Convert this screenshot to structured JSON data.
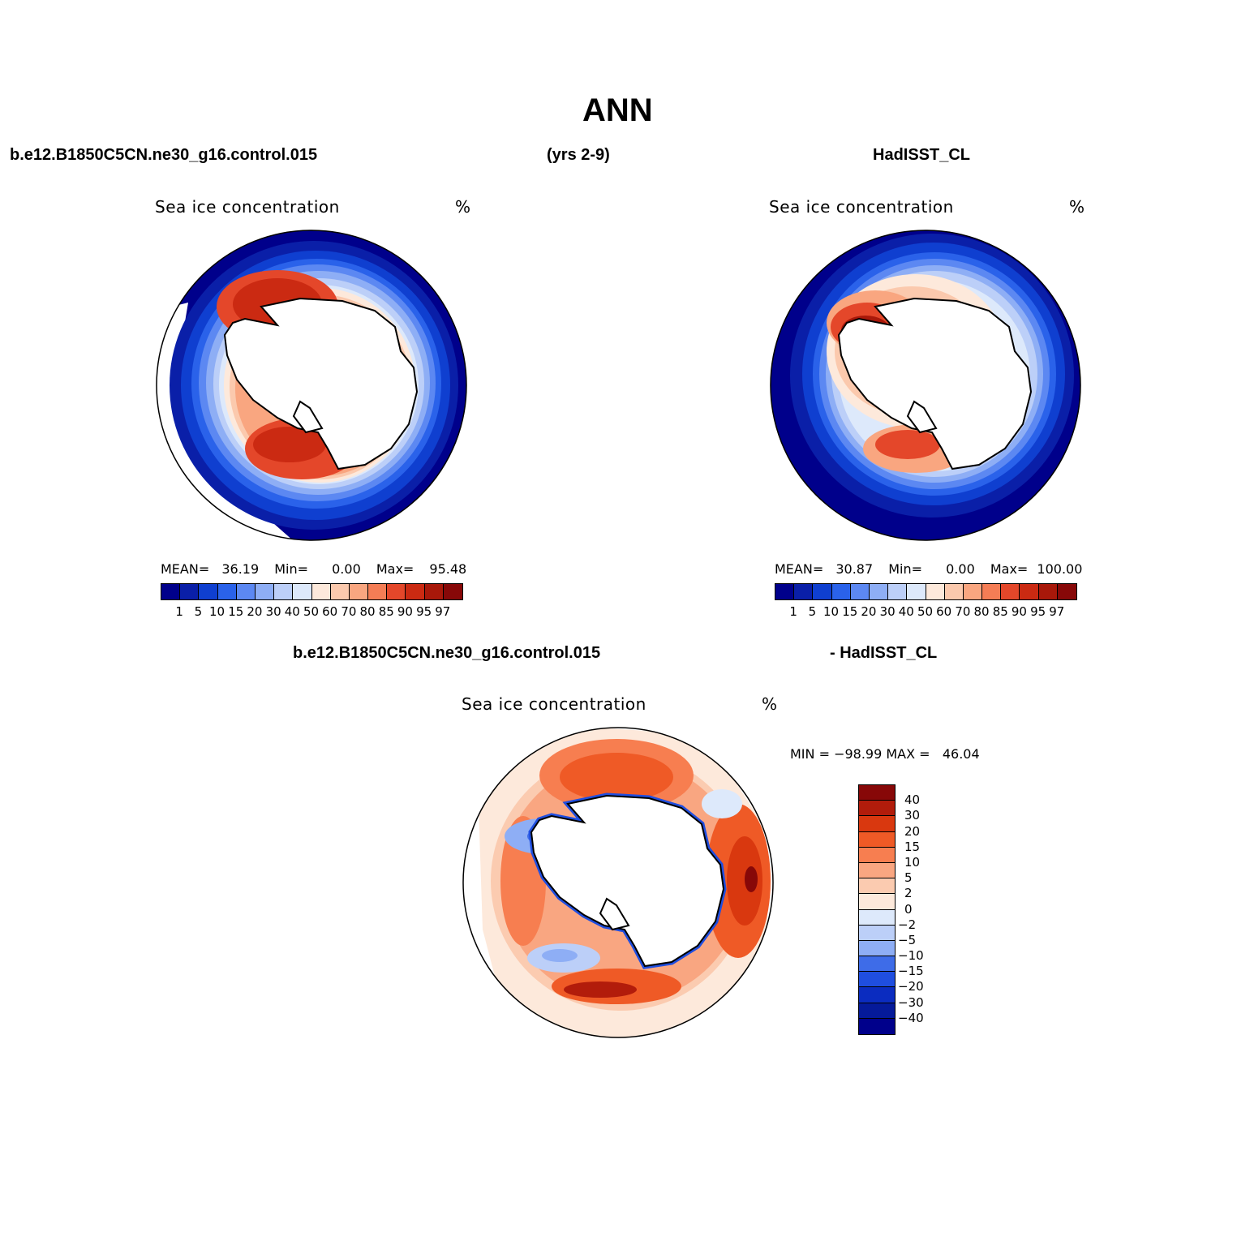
{
  "title": "ANN",
  "header": {
    "left": "b.e12.B1850C5CN.ne30_g16.control.015",
    "center": "(yrs 2-9)",
    "right": "HadISST_CL"
  },
  "diff_header": {
    "left": "b.e12.B1850C5CN.ne30_g16.control.015",
    "right": "- HadISST_CL"
  },
  "panels": [
    {
      "name": "model",
      "label": "Sea ice concentration",
      "units": "%",
      "mean_label": "MEAN=",
      "mean": "36.19",
      "min_label": "Min=",
      "min": "0.00",
      "max_label": "Max=",
      "max": "95.48"
    },
    {
      "name": "obs",
      "label": "Sea ice concentration",
      "units": "%",
      "mean_label": "MEAN=",
      "mean": "30.87",
      "min_label": "Min=",
      "min": "0.00",
      "max_label": "Max=",
      "max": "100.00"
    }
  ],
  "diff_panel": {
    "label": "Sea ice concentration",
    "units": "%",
    "minmax": "MIN = −98.99 MAX =   46.04"
  },
  "colorbar_abs": {
    "labels": [
      "1",
      "5",
      "10",
      "15",
      "20",
      "30",
      "40",
      "50",
      "60",
      "70",
      "80",
      "85",
      "90",
      "95",
      "97"
    ],
    "colors": [
      "#00008b",
      "#0a1fa8",
      "#0f3fd0",
      "#2a62ea",
      "#5c88f2",
      "#8eaef5",
      "#bccff8",
      "#dde9fb",
      "#fde9db",
      "#fbc9ad",
      "#f9a680",
      "#f47d55",
      "#e4472a",
      "#cb2a12",
      "#a8180a",
      "#870808"
    ]
  },
  "colorbar_diff": {
    "labels": [
      "40",
      "30",
      "20",
      "15",
      "10",
      "5",
      "2",
      "0",
      "−2",
      "−5",
      "−10",
      "−15",
      "−20",
      "−30",
      "−40"
    ],
    "colors": [
      "#870808",
      "#b21c0b",
      "#d9380f",
      "#ef5a26",
      "#f77e50",
      "#f9a681",
      "#fbcbb0",
      "#fde9db",
      "#dde9fb",
      "#bccff8",
      "#8eaef5",
      "#3e6ce8",
      "#1f4ee0",
      "#0b2cc0",
      "#051a9a",
      "#00008b"
    ]
  },
  "chart_data": [
    {
      "type": "heatmap",
      "title": "b.e12.B1850C5CN.ne30_g16.control.015",
      "variable": "Sea ice concentration",
      "units": "%",
      "projection": "south polar stereographic",
      "mean": 36.19,
      "min": 0.0,
      "max": 95.48,
      "levels": [
        1,
        5,
        10,
        15,
        20,
        30,
        40,
        50,
        60,
        70,
        80,
        85,
        90,
        95,
        97
      ]
    },
    {
      "type": "heatmap",
      "title": "HadISST_CL",
      "variable": "Sea ice concentration",
      "units": "%",
      "projection": "south polar stereographic",
      "mean": 30.87,
      "min": 0.0,
      "max": 100.0,
      "levels": [
        1,
        5,
        10,
        15,
        20,
        30,
        40,
        50,
        60,
        70,
        80,
        85,
        90,
        95,
        97
      ]
    },
    {
      "type": "heatmap",
      "title": "b.e12.B1850C5CN.ne30_g16.control.015 - HadISST_CL",
      "variable": "Sea ice concentration",
      "units": "%",
      "projection": "south polar stereographic",
      "min": -98.99,
      "max": 46.04,
      "levels": [
        -40,
        -30,
        -20,
        -15,
        -10,
        -5,
        -2,
        0,
        2,
        5,
        10,
        15,
        20,
        30,
        40
      ]
    }
  ]
}
